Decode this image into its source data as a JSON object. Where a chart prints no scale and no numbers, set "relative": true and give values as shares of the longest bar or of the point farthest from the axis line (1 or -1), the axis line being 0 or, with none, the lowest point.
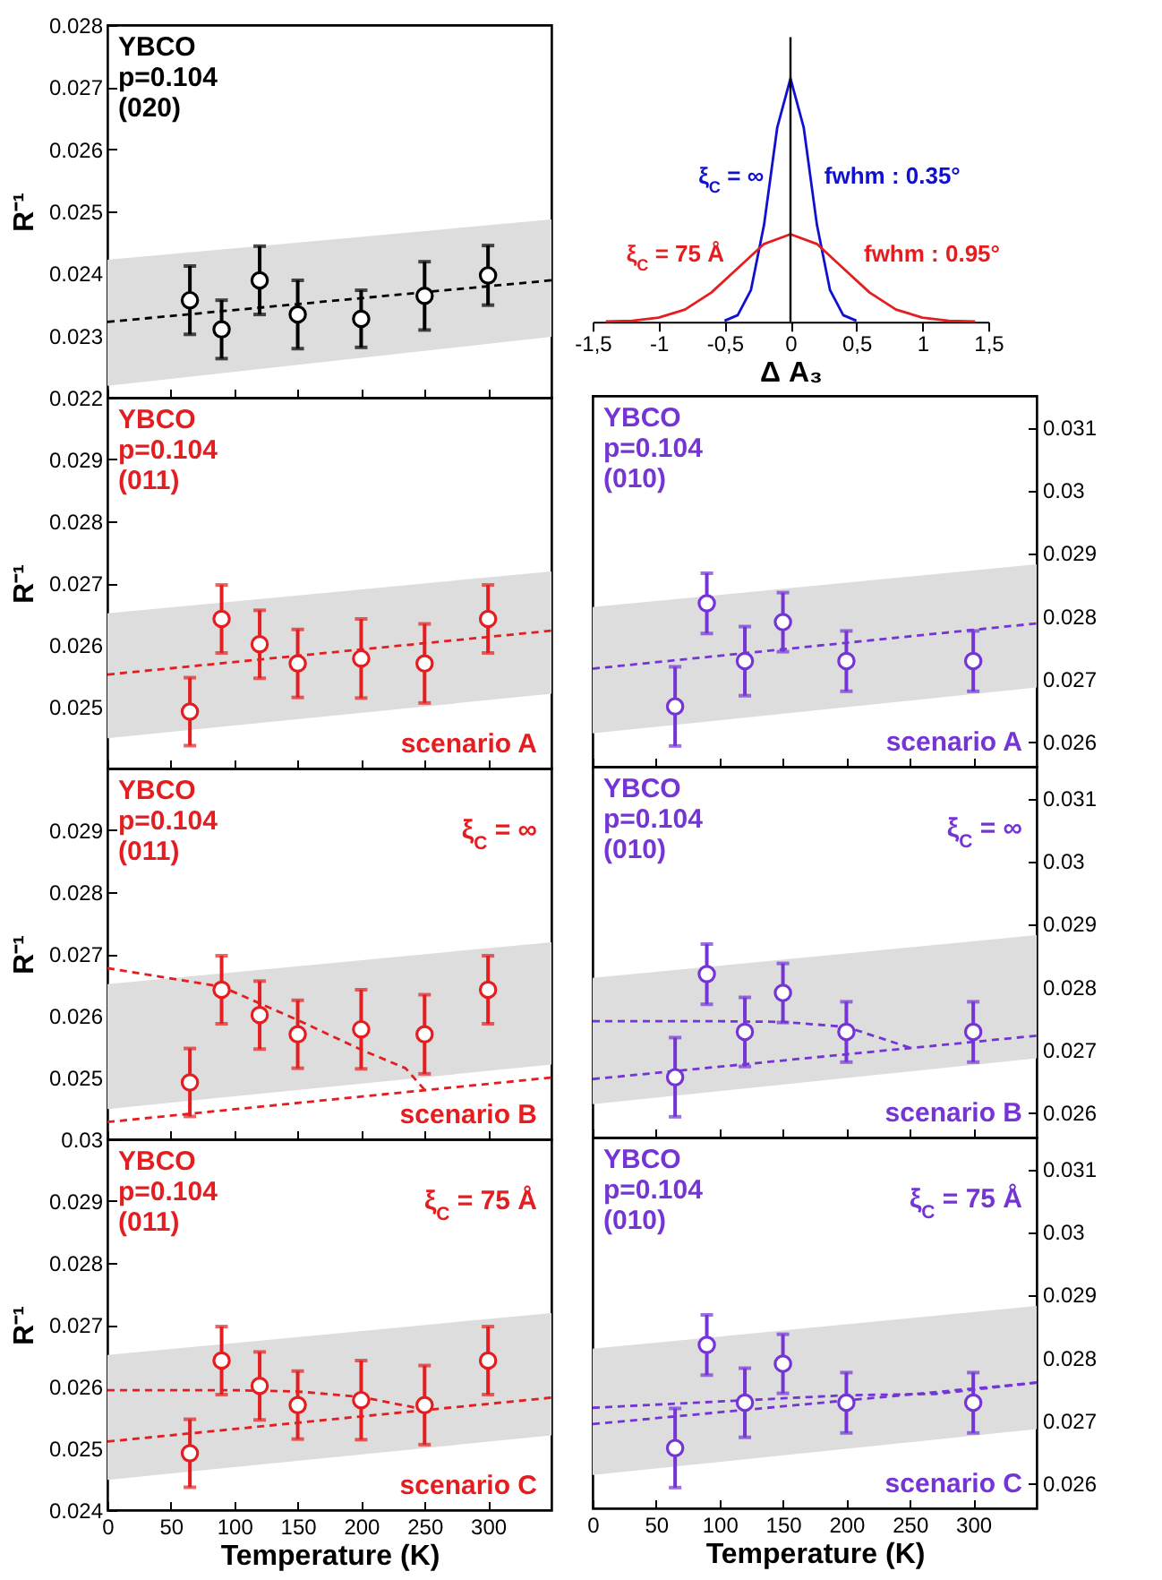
{
  "chart_data": [
    {
      "type": "scatter",
      "ylabel": "R⁻¹",
      "xlim": [
        0,
        350
      ],
      "xticks": [
        0,
        50,
        100,
        150,
        200,
        250,
        300
      ],
      "ylim": [
        0.022,
        0.028
      ],
      "yticks": [
        0.022,
        0.023,
        0.024,
        0.025,
        0.026,
        0.027,
        0.028
      ],
      "tick_labels": "y",
      "line_style": "dashed",
      "annotations": [
        "YBCO",
        "p=0.104",
        "(020)"
      ],
      "series": [
        {
          "type": "line",
          "color": "#dcdddc",
          "x": [
            0,
            350
          ],
          "values": [
            null,
            null
          ],
          "lower": [
            0.02219,
            0.02298
          ],
          "upper": [
            0.02422,
            0.02487
          ]
        },
        {
          "type": "line",
          "color": "#000000",
          "x": [
            0,
            350
          ],
          "values": [
            0.02322,
            0.02389
          ]
        },
        {
          "marker": "circle",
          "color": "#000000",
          "x": [
            65,
            90,
            120,
            150,
            200,
            250,
            300
          ],
          "values": [
            0.02357,
            0.0231,
            0.02389,
            0.02334,
            0.02327,
            0.02364,
            0.02397
          ],
          "errors": [
            0.00055,
            0.00047,
            0.00055,
            0.00055,
            0.00046,
            0.00055,
            0.00048
          ]
        }
      ]
    },
    {
      "type": "line",
      "relative": true,
      "xlabel": "Δ A₃",
      "xlim": [
        -1.5,
        1.5
      ],
      "xticks": [
        {
          "value": -1.5,
          "label": "-1,5"
        },
        -1,
        {
          "value": -0.5,
          "label": "-0,5"
        },
        0,
        {
          "value": 0.5,
          "label": "0,5"
        },
        1,
        {
          "value": 1.5,
          "label": "1,5"
        }
      ],
      "tick_labels": "x",
      "line_style": "solid",
      "ref_lines": [
        {
          "axis": "x",
          "value": 0
        }
      ],
      "annotations": [
        {
          "text": "ξ$_{C}$ = ∞",
          "x": -0.175,
          "y": 0.5
        },
        {
          "text": "fwhm : 0.35°",
          "x": 0.175,
          "y": 0.5
        },
        {
          "text": "ξ$_{C}$ = 75 Å",
          "x": -0.475,
          "y": 0.18
        },
        {
          "text": "fwhm : 0.95°",
          "x": 0.475,
          "y": 0.18
        }
      ],
      "series": [
        {
          "color": "#1010d0",
          "x": [
            -0.5,
            -0.4,
            -0.3,
            -0.2,
            -0.1,
            0,
            0.1,
            0.2,
            0.3,
            0.4,
            0.5
          ],
          "values": [
            0.004,
            0.027,
            0.13,
            0.4,
            0.8,
            1,
            0.8,
            0.4,
            0.13,
            0.027,
            0.004
          ]
        },
        {
          "color": "#e41e20",
          "x": [
            -1.4,
            -1.2,
            -1,
            -0.8,
            -0.6,
            -0.4,
            -0.2,
            0,
            0.2,
            0.4,
            0.6,
            0.8,
            1,
            1.2,
            1.4
          ],
          "values": [
            0.001,
            0.004,
            0.017,
            0.05,
            0.12,
            0.22,
            0.32,
            0.36,
            0.32,
            0.22,
            0.12,
            0.05,
            0.017,
            0.004,
            0.001
          ]
        }
      ]
    },
    {
      "type": "scatter",
      "ylabel": "R⁻¹",
      "xlim": [
        0,
        350
      ],
      "xticks": [
        0,
        50,
        100,
        150,
        200,
        250,
        300
      ],
      "ylim": [
        0.024,
        0.03
      ],
      "yticks": [
        0.025,
        0.026,
        0.027,
        0.028,
        0.029
      ],
      "tick_labels": "y",
      "line_style": "dashed",
      "annotations": [
        "YBCO",
        "p=0.104",
        "(011)",
        "scenario A"
      ],
      "series": [
        {
          "type": "line",
          "color": "#dcdddc",
          "x": [
            0,
            350
          ],
          "values": [
            null,
            null
          ],
          "lower": [
            0.02449,
            0.02521
          ],
          "upper": [
            0.02651,
            0.02719
          ]
        },
        {
          "type": "line",
          "color": "#e41e20",
          "x": [
            0,
            350
          ],
          "values": [
            0.02552,
            0.02623
          ]
        },
        {
          "marker": "circle",
          "color": "#e41e20",
          "x": [
            65,
            90,
            120,
            150,
            200,
            250,
            300
          ],
          "values": [
            0.02492,
            0.02642,
            0.02601,
            0.0257,
            0.02578,
            0.0257,
            0.02642
          ],
          "errors": [
            0.00055,
            0.00055,
            0.00055,
            0.00055,
            0.00064,
            0.00064,
            0.00055
          ]
        }
      ]
    },
    {
      "type": "scatter",
      "xlim": [
        0,
        350
      ],
      "xticks": [
        0,
        50,
        100,
        150,
        200,
        250,
        300
      ],
      "y2lim": [
        0.0256,
        0.0315
      ],
      "y2ticks": [
        0.026,
        0.027,
        0.028,
        0.029,
        0.03,
        0.031
      ],
      "tick_labels": "y",
      "line_style": "dashed",
      "annotations": [
        "YBCO",
        "p=0.104",
        "(010)",
        "scenario A"
      ],
      "series": [
        {
          "type": "line",
          "axis": "y2",
          "color": "#dcdddc",
          "x": [
            0,
            350
          ],
          "values": [
            null,
            null
          ],
          "lower": [
            0.02613,
            0.02686
          ],
          "upper": [
            0.02814,
            0.02882
          ]
        },
        {
          "type": "line",
          "axis": "y2",
          "color": "#7535d5",
          "x": [
            0,
            350
          ],
          "values": [
            0.02716,
            0.02788
          ]
        },
        {
          "marker": "circle",
          "axis": "y2",
          "color": "#7535d5",
          "x": [
            65,
            90,
            120,
            150,
            200,
            300
          ],
          "values": [
            0.02656,
            0.0282,
            0.02728,
            0.0279,
            0.02728,
            0.02728
          ],
          "errors": [
            0.00063,
            0.00048,
            0.00055,
            0.00047,
            0.00048,
            0.00048
          ]
        }
      ]
    },
    {
      "type": "scatter",
      "ylabel": "R⁻¹",
      "xlim": [
        0,
        350
      ],
      "xticks": [
        0,
        50,
        100,
        150,
        200,
        250,
        300
      ],
      "ylim": [
        0.024,
        0.03
      ],
      "yticks": [
        0.025,
        0.026,
        0.027,
        0.028,
        0.029
      ],
      "tick_labels": "y",
      "line_style": "dashed",
      "annotations": [
        "YBCO",
        "p=0.104",
        "(011)",
        "scenario B",
        "ξ$_{C}$ = ∞"
      ],
      "series": [
        {
          "type": "line",
          "color": "#dcdddc",
          "x": [
            0,
            350
          ],
          "values": [
            null,
            null
          ],
          "lower": [
            0.02449,
            0.02521
          ],
          "upper": [
            0.02651,
            0.02719
          ]
        },
        {
          "type": "line",
          "color": "#e41e20",
          "x": [
            0,
            90,
            150,
            200,
            235,
            250
          ],
          "values": [
            0.02677,
            0.02647,
            0.02593,
            0.02545,
            0.02515,
            0.0248
          ]
        },
        {
          "type": "line",
          "color": "#e41e20",
          "x": [
            0,
            350
          ],
          "values": [
            0.02428,
            0.025
          ]
        },
        {
          "marker": "circle",
          "color": "#e41e20",
          "x": [
            65,
            90,
            120,
            150,
            200,
            250,
            300
          ],
          "values": [
            0.02492,
            0.02642,
            0.02601,
            0.0257,
            0.02578,
            0.0257,
            0.02642
          ],
          "errors": [
            0.00055,
            0.00055,
            0.00055,
            0.00055,
            0.00064,
            0.00064,
            0.00055
          ]
        }
      ]
    },
    {
      "type": "scatter",
      "xlim": [
        0,
        350
      ],
      "xticks": [
        0,
        50,
        100,
        150,
        200,
        250,
        300
      ],
      "y2lim": [
        0.0256,
        0.0315
      ],
      "y2ticks": [
        0.026,
        0.027,
        0.028,
        0.029,
        0.03,
        0.031
      ],
      "tick_labels": "y",
      "line_style": "dashed",
      "annotations": [
        "YBCO",
        "p=0.104",
        "(010)",
        "scenario B",
        "ξ$_{C}$ = ∞"
      ],
      "series": [
        {
          "type": "line",
          "axis": "y2",
          "color": "#dcdddc",
          "x": [
            0,
            350
          ],
          "values": [
            null,
            null
          ],
          "lower": [
            0.02613,
            0.02686
          ],
          "upper": [
            0.02814,
            0.02882
          ]
        },
        {
          "type": "line",
          "axis": "y2",
          "color": "#7535d5",
          "x": [
            0,
            100,
            150,
            200,
            250
          ],
          "values": [
            0.02745,
            0.02745,
            0.02744,
            0.02736,
            0.02703
          ]
        },
        {
          "type": "line",
          "axis": "y2",
          "color": "#7535d5",
          "x": [
            0,
            350
          ],
          "values": [
            0.02653,
            0.02722
          ]
        },
        {
          "marker": "circle",
          "axis": "y2",
          "color": "#7535d5",
          "x": [
            65,
            90,
            120,
            150,
            200,
            300
          ],
          "values": [
            0.02656,
            0.0282,
            0.02728,
            0.0279,
            0.02728,
            0.02728
          ],
          "errors": [
            0.00063,
            0.00048,
            0.00055,
            0.00047,
            0.00048,
            0.00048
          ]
        }
      ]
    },
    {
      "type": "scatter",
      "xlabel": "Temperature (K)",
      "ylabel": "R⁻¹",
      "xlim": [
        0,
        350
      ],
      "xticks": [
        0,
        50,
        100,
        150,
        200,
        250,
        300
      ],
      "ylim": [
        0.024,
        0.03
      ],
      "yticks": [
        0.024,
        0.025,
        0.026,
        0.027,
        0.028,
        0.029,
        0.03
      ],
      "line_style": "dashed",
      "annotations": [
        "YBCO",
        "p=0.104",
        "(011)",
        "scenario C",
        "ξ$_{C}$ = 75 Å"
      ],
      "series": [
        {
          "type": "line",
          "color": "#dcdddc",
          "x": [
            0,
            350
          ],
          "values": [
            null,
            null
          ],
          "lower": [
            0.02449,
            0.02521
          ],
          "upper": [
            0.02651,
            0.02719
          ]
        },
        {
          "type": "line",
          "color": "#e41e20",
          "x": [
            0,
            100,
            150,
            200,
            250
          ],
          "values": [
            0.02594,
            0.02594,
            0.02592,
            0.02583,
            0.02563
          ]
        },
        {
          "type": "line",
          "color": "#e41e20",
          "x": [
            0,
            350
          ],
          "values": [
            0.02511,
            0.02582
          ]
        },
        {
          "marker": "circle",
          "color": "#e41e20",
          "x": [
            65,
            90,
            120,
            150,
            200,
            250,
            300
          ],
          "values": [
            0.02492,
            0.02642,
            0.02601,
            0.0257,
            0.02578,
            0.0257,
            0.02642
          ],
          "errors": [
            0.00055,
            0.00055,
            0.00055,
            0.00055,
            0.00064,
            0.00064,
            0.00055
          ]
        }
      ]
    },
    {
      "type": "scatter",
      "xlabel": "Temperature (K)",
      "xlim": [
        0,
        350
      ],
      "xticks": [
        0,
        50,
        100,
        150,
        200,
        250,
        300
      ],
      "y2lim": [
        0.0256,
        0.0315
      ],
      "y2ticks": [
        0.026,
        0.027,
        0.028,
        0.029,
        0.03,
        0.031
      ],
      "line_style": "dashed",
      "annotations": [
        "YBCO",
        "p=0.104",
        "(010)",
        "scenario C",
        "ξ$_{C}$ = 75 Å"
      ],
      "series": [
        {
          "type": "line",
          "axis": "y2",
          "color": "#dcdddc",
          "x": [
            0,
            350
          ],
          "values": [
            null,
            null
          ],
          "lower": [
            0.02613,
            0.02686
          ],
          "upper": [
            0.02814,
            0.02882
          ]
        },
        {
          "type": "line",
          "axis": "y2",
          "color": "#7535d5",
          "x": [
            0,
            100,
            150,
            200,
            270,
            350
          ],
          "values": [
            0.0272,
            0.0273,
            0.02735,
            0.0274,
            0.02742,
            0.0276
          ]
        },
        {
          "type": "line",
          "axis": "y2",
          "color": "#7535d5",
          "x": [
            0,
            350
          ],
          "values": [
            0.02694,
            0.0276
          ]
        },
        {
          "marker": "circle",
          "axis": "y2",
          "color": "#7535d5",
          "x": [
            65,
            90,
            120,
            150,
            200,
            300
          ],
          "values": [
            0.02656,
            0.0282,
            0.02728,
            0.0279,
            0.02728,
            0.02728
          ],
          "errors": [
            0.00063,
            0.00048,
            0.00055,
            0.00047,
            0.00048,
            0.00048
          ]
        }
      ]
    }
  ]
}
